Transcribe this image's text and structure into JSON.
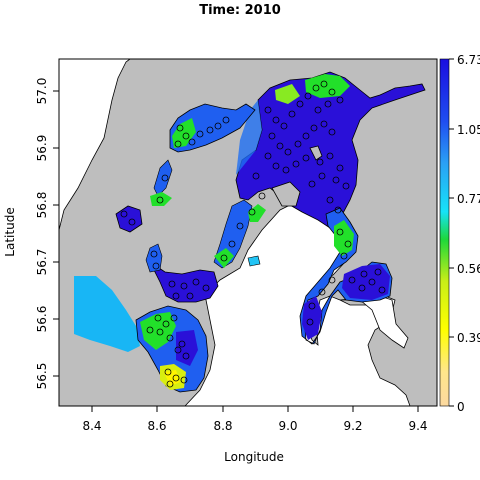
{
  "title": "Time: 2010",
  "x_axis": {
    "label": "Longitude",
    "ticks": [
      "8.4",
      "8.6",
      "8.8",
      "9.0",
      "9.2",
      "9.4"
    ]
  },
  "y_axis": {
    "label": "Latitude",
    "ticks": [
      "57.0",
      "56.9",
      "56.8",
      "56.7",
      "56.6",
      "56.5"
    ]
  },
  "colorbar": {
    "ticks": [
      "6.73",
      "1.05",
      "0.77",
      "0.56",
      "0.39",
      "0"
    ],
    "colors": [
      "#1a0ee0",
      "#1f4ef0",
      "#2aa0f5",
      "#16e2f8",
      "#1dd83a",
      "#7ee020",
      "#d8ee10",
      "#ffff00",
      "#ffe68a",
      "#fcd9a0"
    ]
  },
  "colors": {
    "land": "#bebebe",
    "deep_blue": "#2a10d8",
    "blue": "#1f5ff0",
    "light_blue": "#15b8f5",
    "cyan": "#10e8f8",
    "green": "#22e02a",
    "yellow_green": "#bcef1e",
    "yellow": "#fff400"
  }
}
